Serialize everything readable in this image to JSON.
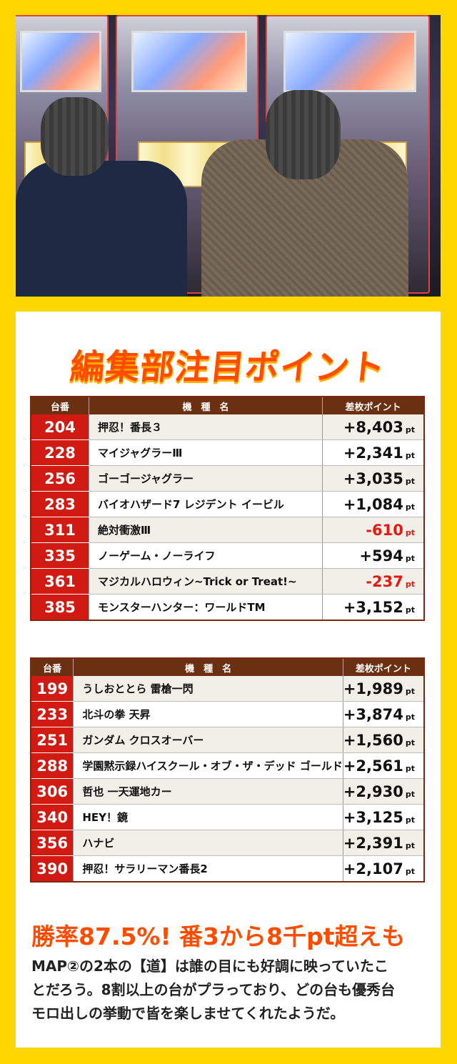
{
  "heading": "編集部注目ポイント",
  "columns": {
    "no": "台番",
    "name": "機　種　名",
    "points": "差枚ポイント"
  },
  "unit": "pt",
  "table1": [
    {
      "no": "204",
      "name": "押忍！番長３",
      "value": "+8,403"
    },
    {
      "no": "228",
      "name": "マイジャグラーⅢ",
      "value": "+2,341"
    },
    {
      "no": "256",
      "name": "ゴーゴージャグラー",
      "value": "+3,035"
    },
    {
      "no": "283",
      "name": "バイオハザード7 レジデント イービル",
      "value": "+1,084"
    },
    {
      "no": "311",
      "name": "絶対衝激Ⅲ",
      "value": "-610"
    },
    {
      "no": "335",
      "name": "ノーゲーム・ノーライフ",
      "value": "+594"
    },
    {
      "no": "361",
      "name": "マジカルハロウィン~Trick or Treat!~",
      "value": "-237"
    },
    {
      "no": "385",
      "name": "モンスターハンター：ワールドTM",
      "value": "+3,152"
    }
  ],
  "table2": [
    {
      "no": "199",
      "name": "うしおととら 雷槍一閃",
      "value": "+1,989"
    },
    {
      "no": "233",
      "name": "北斗の拳 天昇",
      "value": "+3,874"
    },
    {
      "no": "251",
      "name": "ガンダム クロスオーバー",
      "value": "+1,560"
    },
    {
      "no": "288",
      "name": "学園黙示録ハイスクール・オブ・ザ・デッド ゴールド",
      "value": "+2,561"
    },
    {
      "no": "306",
      "name": "哲也 一天運地カー",
      "value": "+2,930"
    },
    {
      "no": "340",
      "name": "HEY！鏡",
      "value": "+3,125"
    },
    {
      "no": "356",
      "name": "ハナビ",
      "value": "+2,391"
    },
    {
      "no": "390",
      "name": "押忍！サラリーマン番長2",
      "value": "+2,107"
    }
  ],
  "subhead": "勝率87.5%! 番3から8千pt超えも",
  "body_lines": [
    "MAP②の2本の【道】は誰の目にも好調に映っていたこ",
    "とだろう。8割以上の台がプラっており、どの台も優秀台",
    "モロ出しの挙動で皆を楽しませてくれたようだ。"
  ],
  "colors": {
    "frame": "#ffd600",
    "accent": "#ff4d00",
    "number_cell": "#d01a12",
    "header": "#6b2f12",
    "negative": "#e31a12"
  }
}
